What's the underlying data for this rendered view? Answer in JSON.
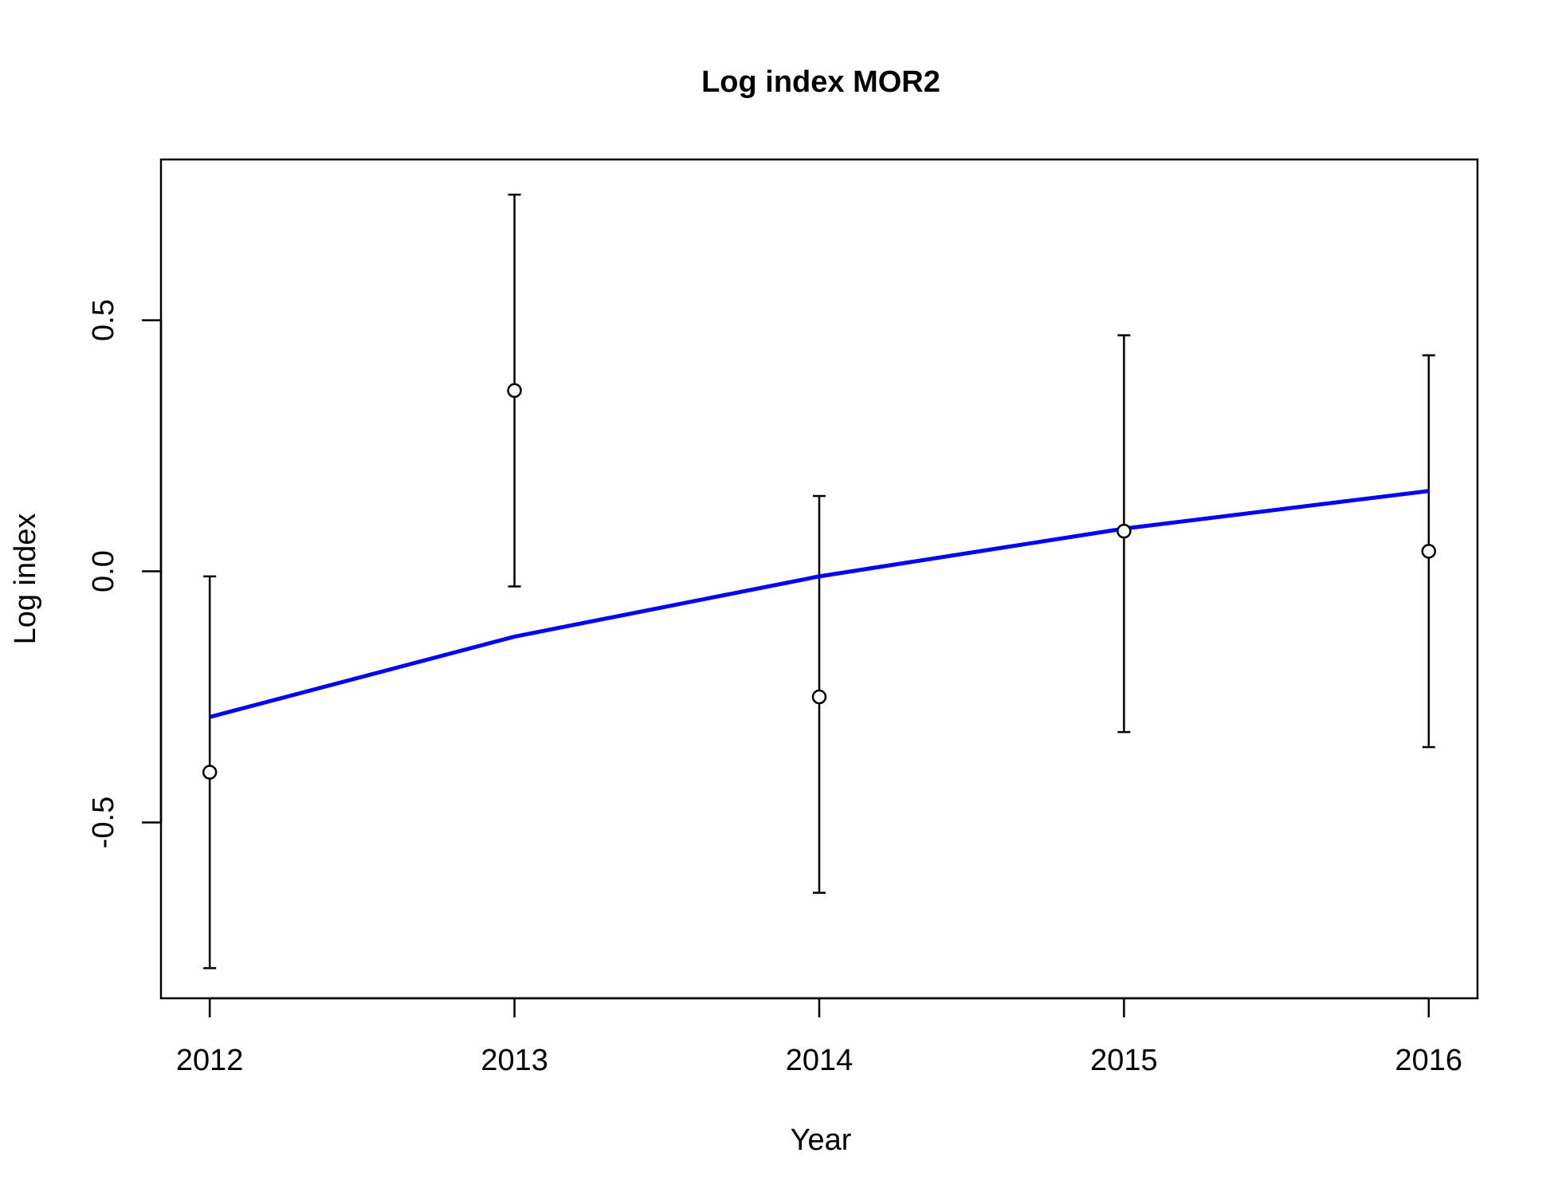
{
  "chart_data": {
    "type": "line",
    "title": "Log index MOR2",
    "xlabel": "Year",
    "ylabel": "Log index",
    "x": [
      2012,
      2013,
      2014,
      2015,
      2016
    ],
    "x_ticks": [
      "2012",
      "2013",
      "2014",
      "2015",
      "2016"
    ],
    "y_ticks": [
      "-0.5",
      "0.0",
      "0.5"
    ],
    "xlim": [
      2011.84,
      2016.16
    ],
    "ylim": [
      -0.85,
      0.82
    ],
    "grid": false,
    "series": [
      {
        "kind": "points-with-error-bars",
        "color": "#000000",
        "values": [
          -0.4,
          0.36,
          -0.25,
          0.08,
          0.04
        ],
        "lower": [
          -0.79,
          -0.03,
          -0.64,
          -0.32,
          -0.35
        ],
        "upper": [
          -0.01,
          0.75,
          0.15,
          0.47,
          0.43
        ]
      },
      {
        "kind": "line",
        "color": "#0000ff",
        "values": [
          -0.29,
          -0.13,
          -0.01,
          0.085,
          0.16
        ]
      }
    ]
  }
}
